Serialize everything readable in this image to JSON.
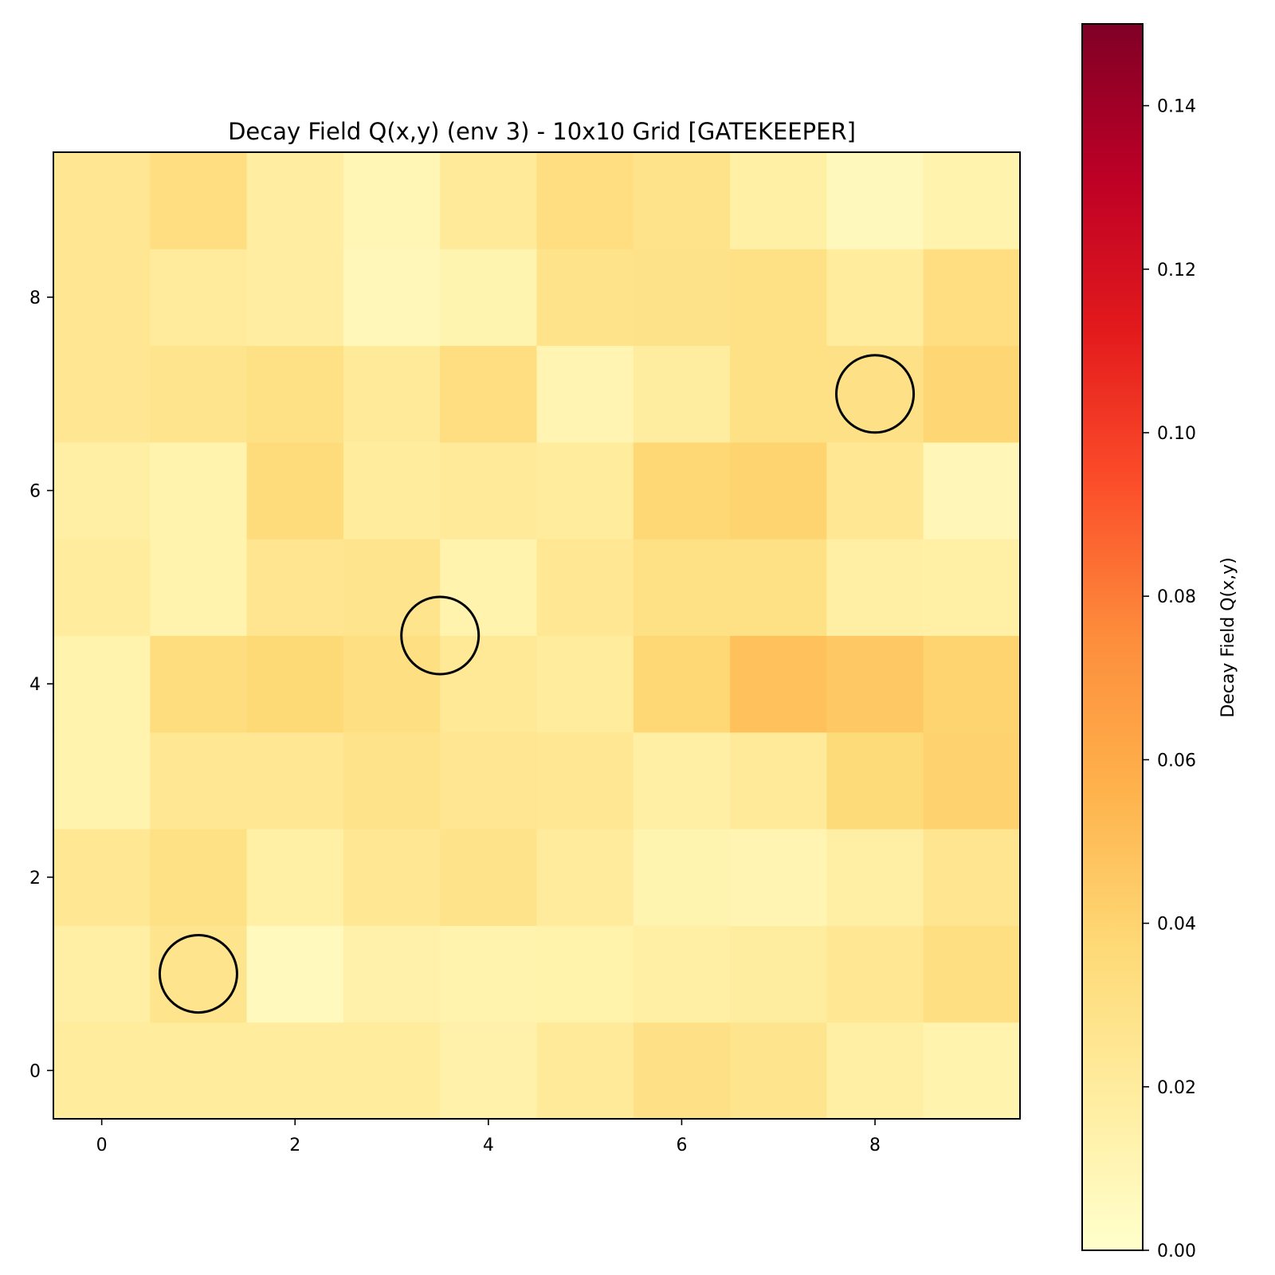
{
  "chart_data": {
    "type": "heatmap",
    "title": "Decay Field Q(x,y) (env 3) - 10x10 Grid [GATEKEEPER]",
    "xlabel": "",
    "ylabel": "",
    "x_categories": [
      0,
      1,
      2,
      3,
      4,
      5,
      6,
      7,
      8,
      9
    ],
    "y_categories": [
      0,
      1,
      2,
      3,
      4,
      5,
      6,
      7,
      8,
      9
    ],
    "xlim": [
      -0.5,
      9.5
    ],
    "ylim": [
      -0.5,
      9.5
    ],
    "x_ticks": [
      "0",
      "2",
      "4",
      "6",
      "8"
    ],
    "y_ticks": [
      "0",
      "2",
      "4",
      "6",
      "8"
    ],
    "values_rows_bottom_to_top": [
      [
        0.02,
        0.02,
        0.02,
        0.02,
        0.015,
        0.022,
        0.03,
        0.027,
        0.017,
        0.013
      ],
      [
        0.017,
        0.027,
        0.006,
        0.015,
        0.013,
        0.014,
        0.017,
        0.019,
        0.024,
        0.032
      ],
      [
        0.024,
        0.031,
        0.016,
        0.024,
        0.028,
        0.021,
        0.012,
        0.011,
        0.017,
        0.026
      ],
      [
        0.013,
        0.024,
        0.024,
        0.028,
        0.025,
        0.024,
        0.017,
        0.022,
        0.036,
        0.041
      ],
      [
        0.013,
        0.034,
        0.037,
        0.032,
        0.023,
        0.02,
        0.038,
        0.049,
        0.045,
        0.04
      ],
      [
        0.02,
        0.013,
        0.026,
        0.027,
        0.013,
        0.024,
        0.031,
        0.031,
        0.017,
        0.016
      ],
      [
        0.017,
        0.013,
        0.035,
        0.02,
        0.022,
        0.02,
        0.038,
        0.04,
        0.024,
        0.009
      ],
      [
        0.025,
        0.027,
        0.031,
        0.022,
        0.033,
        0.011,
        0.019,
        0.031,
        0.03,
        0.039
      ],
      [
        0.025,
        0.021,
        0.018,
        0.008,
        0.012,
        0.028,
        0.029,
        0.031,
        0.02,
        0.033
      ],
      [
        0.025,
        0.033,
        0.018,
        0.01,
        0.022,
        0.033,
        0.028,
        0.016,
        0.007,
        0.013
      ]
    ],
    "markers": [
      {
        "x": 1,
        "y": 1
      },
      {
        "x": 3.5,
        "y": 4.5
      },
      {
        "x": 8,
        "y": 7
      }
    ],
    "colorbar": {
      "label": "Decay Field Q(x,y)",
      "range": [
        0,
        0.15
      ],
      "ticks": [
        "0.00",
        "0.02",
        "0.04",
        "0.06",
        "0.08",
        "0.10",
        "0.12",
        "0.14"
      ],
      "tick_values": [
        0,
        0.02,
        0.04,
        0.06,
        0.08,
        0.1,
        0.12,
        0.14
      ],
      "colormap": "YlOrRd",
      "colormap_stops": [
        "#ffffcc",
        "#ffeda0",
        "#fed976",
        "#feb24c",
        "#fd8d3c",
        "#fc4e2a",
        "#e31a1c",
        "#bd0026",
        "#800026"
      ]
    }
  }
}
